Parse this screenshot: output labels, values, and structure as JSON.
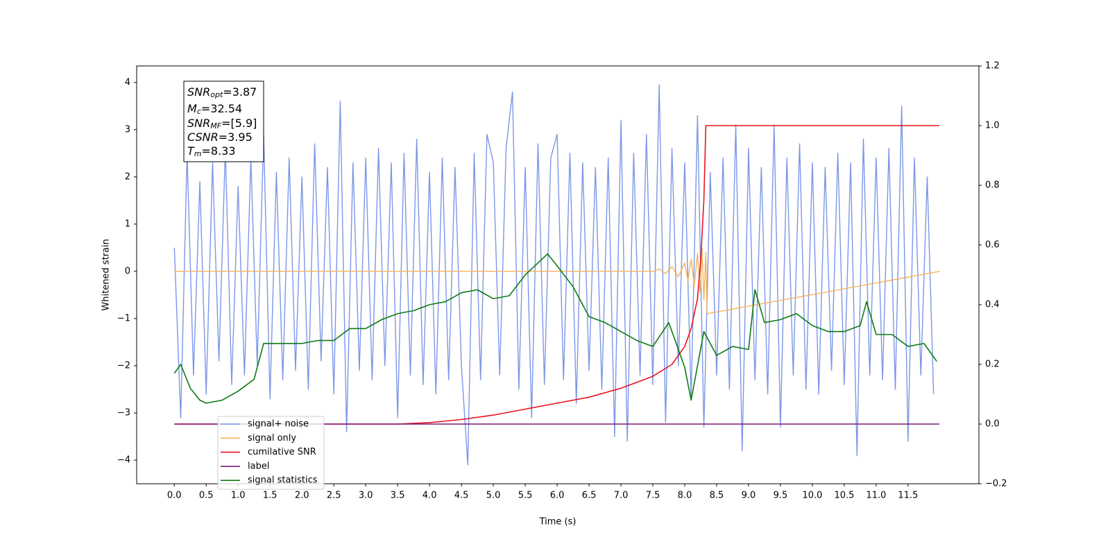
{
  "chart_data": {
    "type": "line",
    "xlabel": "Time (s)",
    "ylabel": "Whitened strain",
    "xlim": [
      -0.59,
      12.61
    ],
    "ylim": [
      -4.5,
      4.35
    ],
    "y2lim": [
      -0.2,
      1.2
    ],
    "xticks": [
      {
        "value": 0,
        "label": "0.0"
      },
      0.5,
      {
        "value": 1,
        "label": "1.0"
      },
      1.5,
      {
        "value": 2,
        "label": "2.0"
      },
      2.5,
      {
        "value": 3,
        "label": "3.0"
      },
      3.5,
      {
        "value": 4,
        "label": "4.0"
      },
      4.5,
      {
        "value": 5,
        "label": "5.0"
      },
      5.5,
      {
        "value": 6,
        "label": "6.0"
      },
      6.5,
      {
        "value": 7,
        "label": "7.0"
      },
      7.5,
      {
        "value": 8,
        "label": "8.0"
      },
      8.5,
      {
        "value": 9,
        "label": "9.0"
      },
      9.5,
      {
        "value": 10,
        "label": "10.0"
      },
      10.5,
      {
        "value": 11,
        "label": "11.0"
      },
      11.5
    ],
    "yticks": [
      {
        "value": -4,
        "label": "−4"
      },
      {
        "value": -3,
        "label": "−3"
      },
      {
        "value": -2,
        "label": "−2"
      },
      {
        "value": -1,
        "label": "−1"
      },
      0,
      1,
      2,
      3,
      4
    ],
    "y2ticks": [
      {
        "value": -0.2,
        "label": "−0.2"
      },
      {
        "value": 0,
        "label": "0.0"
      },
      0.2,
      0.4,
      0.6,
      0.8,
      {
        "value": 1,
        "label": "1.0"
      },
      1.2
    ],
    "legend": "lower left",
    "annotation": [
      {
        "base": "SNR",
        "sub": "opt",
        "text": "=3.87"
      },
      {
        "base": "M",
        "sub": "c",
        "text": "=32.54"
      },
      {
        "base": "SNR",
        "sub": "MF",
        "text": "=[5.9]"
      },
      {
        "base": "CSNR",
        "text": "=3.95"
      },
      {
        "base": "T",
        "sub": "m",
        "text": "=8.33"
      }
    ],
    "series": [
      {
        "name": "signal+ noise",
        "color": "#7b96e8",
        "x": [
          0.0,
          0.1,
          0.2,
          0.3,
          0.4,
          0.5,
          0.6,
          0.7,
          0.8,
          0.9,
          1.0,
          1.1,
          1.2,
          1.3,
          1.4,
          1.5,
          1.6,
          1.7,
          1.8,
          1.9,
          2.0,
          2.1,
          2.2,
          2.3,
          2.4,
          2.5,
          2.6,
          2.7,
          2.8,
          2.9,
          3.0,
          3.1,
          3.2,
          3.3,
          3.4,
          3.5,
          3.6,
          3.7,
          3.8,
          3.9,
          4.0,
          4.1,
          4.2,
          4.3,
          4.4,
          4.5,
          4.6,
          4.7,
          4.8,
          4.9,
          5.0,
          5.1,
          5.2,
          5.3,
          5.4,
          5.5,
          5.6,
          5.7,
          5.8,
          5.9,
          6.0,
          6.1,
          6.2,
          6.3,
          6.4,
          6.5,
          6.6,
          6.7,
          6.8,
          6.9,
          7.0,
          7.1,
          7.2,
          7.3,
          7.4,
          7.5,
          7.6,
          7.7,
          7.8,
          7.9,
          8.0,
          8.1,
          8.2,
          8.3,
          8.4,
          8.5,
          8.6,
          8.7,
          8.8,
          8.9,
          9.0,
          9.1,
          9.2,
          9.3,
          9.4,
          9.5,
          9.6,
          9.7,
          9.8,
          9.9,
          10.0,
          10.1,
          10.2,
          10.3,
          10.4,
          10.5,
          10.6,
          10.7,
          10.8,
          10.9,
          11.0,
          11.1,
          11.2,
          11.3,
          11.4,
          11.5,
          11.6,
          11.7,
          11.8,
          11.9
        ],
        "values": [
          0.5,
          -3.1,
          2.5,
          -2.2,
          1.9,
          -2.6,
          2.3,
          -1.9,
          2.6,
          -2.4,
          1.8,
          -2.2,
          2.4,
          -2.0,
          2.9,
          -2.7,
          2.1,
          -2.3,
          2.4,
          -2.1,
          2.0,
          -2.5,
          2.7,
          -1.9,
          2.2,
          -2.6,
          3.6,
          -3.4,
          2.3,
          -2.1,
          2.4,
          -2.3,
          2.6,
          -2.0,
          2.3,
          -3.1,
          2.5,
          -2.2,
          2.8,
          -2.4,
          2.1,
          -2.6,
          2.4,
          -2.3,
          2.2,
          -2.0,
          -4.1,
          2.5,
          -2.3,
          2.9,
          2.3,
          -2.2,
          2.6,
          3.8,
          -2.5,
          2.2,
          -3.1,
          2.7,
          -2.4,
          2.4,
          2.9,
          -2.3,
          2.5,
          -2.8,
          2.3,
          -2.1,
          2.2,
          -2.5,
          2.4,
          -3.5,
          3.2,
          -3.6,
          2.5,
          -2.2,
          2.9,
          -2.4,
          3.95,
          -3.2,
          2.6,
          -2.0,
          2.3,
          -2.7,
          3.3,
          -3.3,
          2.1,
          -2.2,
          2.4,
          -2.5,
          3.1,
          -3.8,
          2.6,
          -2.3,
          2.2,
          -2.6,
          3.1,
          -3.3,
          2.4,
          -2.2,
          2.7,
          -2.5,
          2.3,
          -2.6,
          2.2,
          -2.1,
          2.5,
          -2.4,
          2.3,
          -3.9,
          2.8,
          -2.2,
          2.4,
          -2.3,
          2.6,
          -2.5,
          3.5,
          -3.6,
          2.4,
          -2.2,
          2.0,
          -2.6
        ]
      },
      {
        "name": "signal only",
        "color": "#f5b25c",
        "x": [
          0,
          7.5,
          7.6,
          7.7,
          7.8,
          7.9,
          8.0,
          8.05,
          8.1,
          8.15,
          8.2,
          8.24,
          8.27,
          8.3,
          8.33,
          8.35,
          12.0
        ],
        "values": [
          0,
          0,
          0.05,
          -0.05,
          0.1,
          -0.12,
          0.18,
          -0.2,
          0.26,
          -0.3,
          0.38,
          -0.45,
          0.5,
          -0.6,
          0.4,
          -0.9,
          0
        ]
      },
      {
        "name": "cumilative SNR",
        "color": "#e8141c",
        "axis": "y2",
        "x": [
          0,
          3.5,
          4.0,
          4.5,
          5.0,
          5.5,
          6.0,
          6.5,
          7.0,
          7.5,
          7.8,
          8.0,
          8.1,
          8.2,
          8.25,
          8.3,
          8.33,
          8.35,
          11.99
        ],
        "values": [
          0,
          0,
          0.005,
          0.015,
          0.03,
          0.05,
          0.07,
          0.09,
          0.12,
          0.16,
          0.2,
          0.26,
          0.32,
          0.42,
          0.55,
          0.75,
          1.0,
          1.0,
          1.0
        ]
      },
      {
        "name": "label",
        "color": "#7a1a7a",
        "axis": "y2",
        "x": [
          0,
          11.99
        ],
        "values": [
          0,
          0
        ]
      },
      {
        "name": "signal statistics",
        "color": "#0d7a10",
        "axis": "y2",
        "x": [
          0,
          0.1,
          0.25,
          0.4,
          0.5,
          0.75,
          1.0,
          1.25,
          1.4,
          1.75,
          2.0,
          2.25,
          2.5,
          2.75,
          3.0,
          3.25,
          3.5,
          3.75,
          4.0,
          4.25,
          4.5,
          4.75,
          5.0,
          5.25,
          5.5,
          5.75,
          5.85,
          6.0,
          6.25,
          6.5,
          6.75,
          7.0,
          7.25,
          7.5,
          7.75,
          8.0,
          8.1,
          8.3,
          8.5,
          8.75,
          9.0,
          9.1,
          9.25,
          9.5,
          9.75,
          10.0,
          10.25,
          10.5,
          10.75,
          10.85,
          11.0,
          11.25,
          11.5,
          11.75,
          11.95
        ],
        "values": [
          0.17,
          0.2,
          0.12,
          0.08,
          0.07,
          0.08,
          0.11,
          0.15,
          0.27,
          0.27,
          0.27,
          0.28,
          0.28,
          0.32,
          0.32,
          0.35,
          0.37,
          0.38,
          0.4,
          0.41,
          0.44,
          0.45,
          0.42,
          0.43,
          0.5,
          0.55,
          0.57,
          0.53,
          0.46,
          0.36,
          0.34,
          0.31,
          0.28,
          0.26,
          0.34,
          0.19,
          0.08,
          0.31,
          0.23,
          0.26,
          0.25,
          0.45,
          0.34,
          0.35,
          0.37,
          0.33,
          0.31,
          0.31,
          0.33,
          0.41,
          0.3,
          0.3,
          0.26,
          0.27,
          0.21
        ]
      }
    ]
  }
}
